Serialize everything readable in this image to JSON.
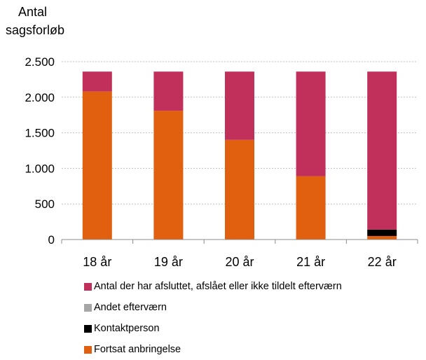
{
  "chart_data": {
    "type": "bar",
    "stacked": true,
    "ylabel_lines": [
      "Antal",
      "sagsforløb"
    ],
    "xlabel": "",
    "categories": [
      "18 år",
      "19 år",
      "20 år",
      "21 år",
      "22 år"
    ],
    "ylim": [
      0,
      2500
    ],
    "yticks": [
      0,
      500,
      1000,
      1500,
      2000,
      2500
    ],
    "ytick_labels": [
      "0",
      "500",
      "1.000",
      "1.500",
      "2.000",
      "2.500"
    ],
    "grid": true,
    "legend_position": "bottom",
    "series": [
      {
        "name": "Fortsat anbringelse",
        "color": "#e06010",
        "values": [
          2080,
          1810,
          1400,
          890,
          50
        ]
      },
      {
        "name": "Kontaktperson",
        "color": "#000000",
        "values": [
          0,
          0,
          0,
          0,
          90
        ]
      },
      {
        "name": "Andet efterværn",
        "color": "#a6a6a6",
        "values": [
          0,
          0,
          0,
          0,
          0
        ]
      },
      {
        "name": "Antal der har afsluttet, afslået eller  ikke tildelt efterværn",
        "color": "#c0305a",
        "values": [
          280,
          550,
          960,
          1470,
          2220
        ]
      }
    ],
    "legend_order": [
      3,
      2,
      1,
      0
    ]
  }
}
